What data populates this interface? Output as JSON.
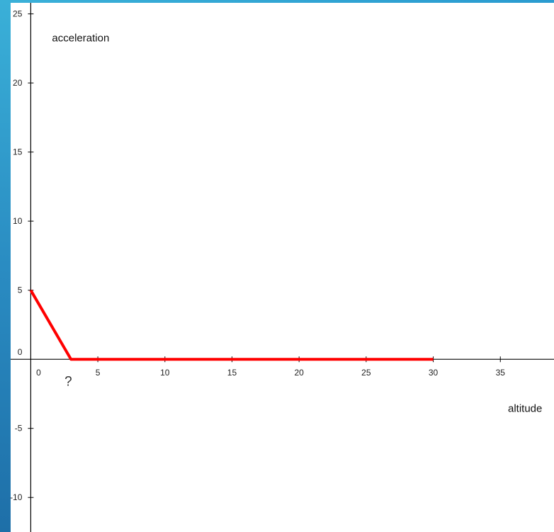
{
  "chart_data": {
    "type": "line",
    "xlabel": "altitude",
    "ylabel": "acceleration",
    "xlim": [
      -1.5,
      39
    ],
    "ylim": [
      -12.5,
      25.8
    ],
    "x_ticks": [
      0,
      5,
      10,
      15,
      20,
      25,
      30,
      35
    ],
    "y_ticks": [
      -10,
      -5,
      0,
      5,
      10,
      15,
      20,
      25
    ],
    "series": [
      {
        "color": "#ff0000",
        "x": [
          0,
          3,
          30
        ],
        "y": [
          5,
          0,
          0
        ]
      }
    ],
    "annotations": [
      {
        "text": "?",
        "x": 2.8,
        "y": -1.9
      }
    ],
    "grid": false
  },
  "colors": {
    "accent_band": "#2a8cc2",
    "axis": "#000000"
  }
}
